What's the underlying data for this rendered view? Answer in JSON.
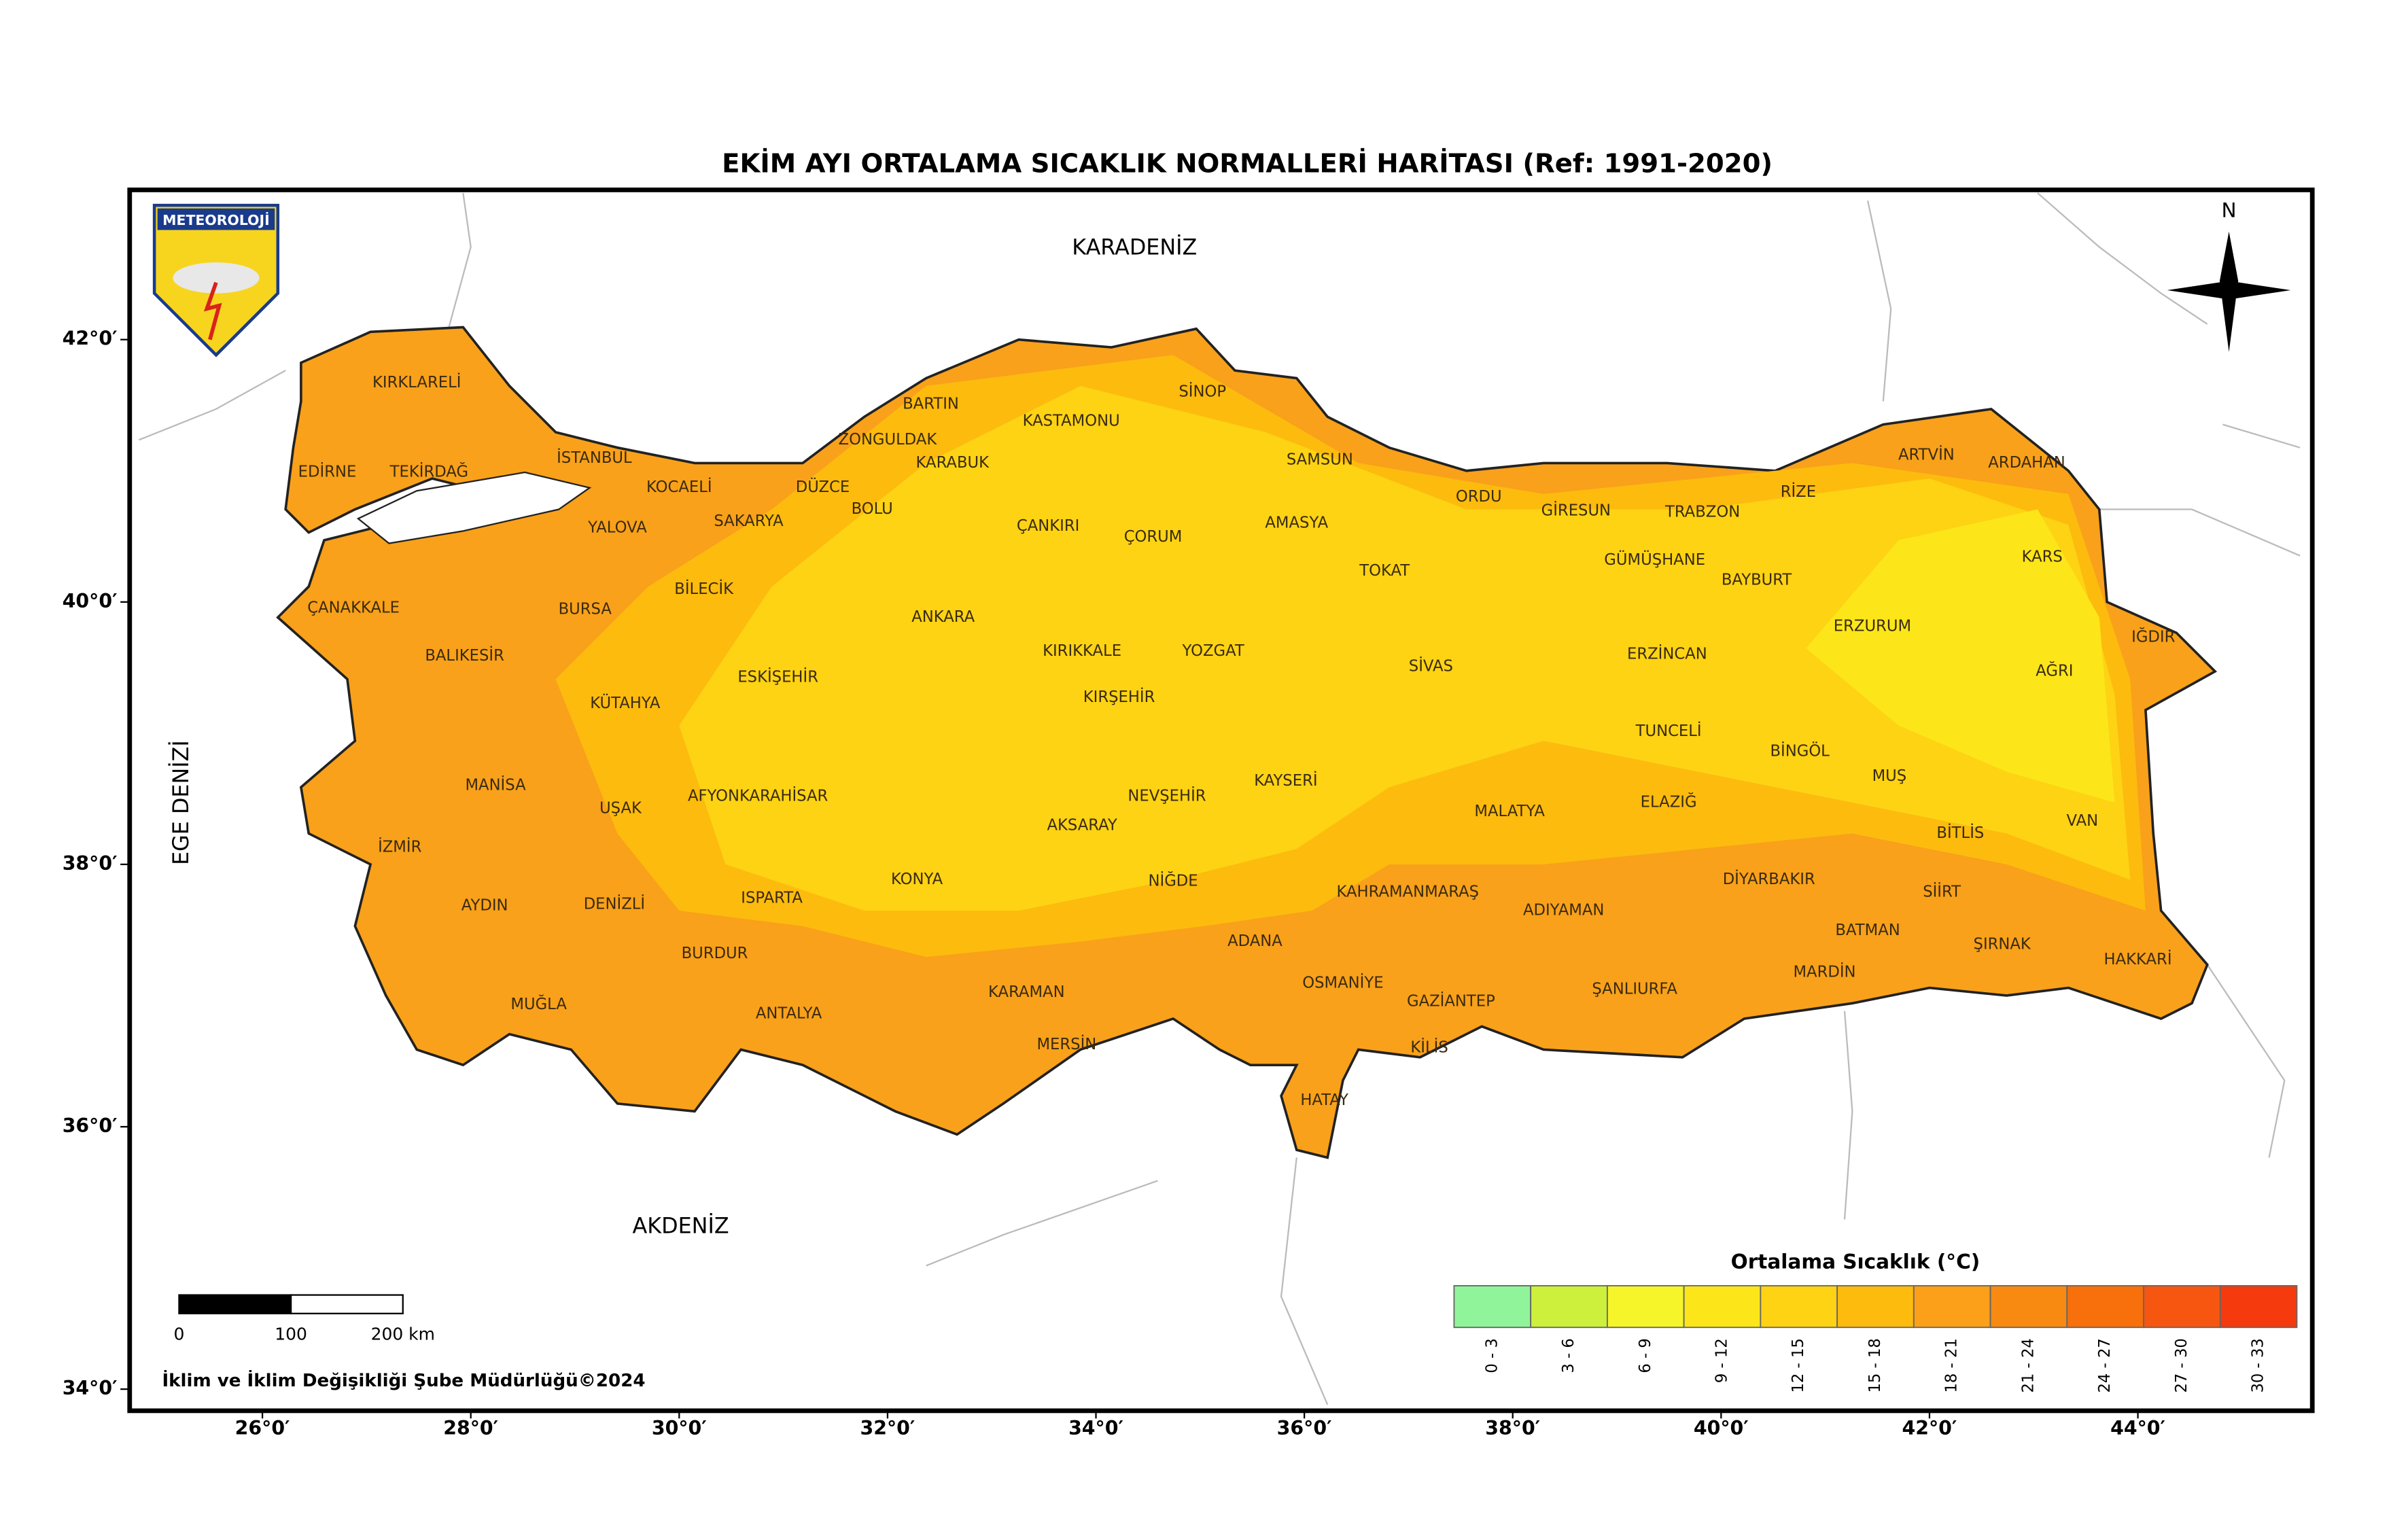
{
  "title": "EKİM AYI ORTALAMA SICAKLIK NORMALLERİ HARİTASI (Ref: 1991-2020)",
  "seas": [
    "KARADENİZ",
    "AKDENİZ",
    "EGE DENİZİ"
  ],
  "logo": "METEOROLOJİ",
  "north": "N",
  "footer": "İklim ve İklim Değişikliği Şube Müdürlüğü©2024",
  "provinces": [
    "KIRKLARELİ",
    "EDİRNE",
    "TEKİRDAĞ",
    "İSTANBUL",
    "KOCAELİ",
    "YALOVA",
    "SAKARYA",
    "DÜZCE",
    "ZONGULDAK",
    "BARTIN",
    "KARABUK",
    "BOLU",
    "KASTAMONU",
    "SİNOP",
    "SAMSUN",
    "ORDU",
    "GİRESUN",
    "TRABZON",
    "RİZE",
    "ARTVİN",
    "ARDAHAN",
    "KARS",
    "IĞDIR",
    "AĞRI",
    "ERZURUM",
    "BAYBURT",
    "GÜMÜŞHANE",
    "ERZİNCAN",
    "TOKAT",
    "AMASYA",
    "ÇORUM",
    "ÇANKIRI",
    "ANKARA",
    "KIRIKKALE",
    "YOZGAT",
    "SİVAS",
    "KIRŞEHİR",
    "NEVŞEHİR",
    "KAYSERİ",
    "AKSARAY",
    "NİĞDE",
    "KONYA",
    "KARAMAN",
    "MERSİN",
    "ADANA",
    "OSMANİYE",
    "HATAY",
    "KİLİS",
    "GAZİANTEP",
    "KAHRAMANMARAŞ",
    "MALATYA",
    "ADIYAMAN",
    "ŞANLIURFA",
    "ELAZIĞ",
    "TUNCELİ",
    "BİNGÖL",
    "MUŞ",
    "BİTLİS",
    "VAN",
    "DİYARBAKIR",
    "BATMAN",
    "SİİRT",
    "MARDİN",
    "ŞIRNAK",
    "HAKKARİ",
    "BİLECİK",
    "BURSA",
    "ÇANAKKALE",
    "BALIKESİR",
    "KÜTAHYA",
    "ESKİŞEHİR",
    "AFYONKARAHİSAR",
    "UŞAK",
    "MANİSA",
    "İZMİR",
    "AYDIN",
    "DENİZLİ",
    "ISPARTA",
    "BURDUR",
    "MUĞLA",
    "ANTALYA"
  ],
  "lat_ticks": [
    {
      "value": 42,
      "label": "42°0′"
    },
    {
      "value": 40,
      "label": "40°0′"
    },
    {
      "value": 38,
      "label": "38°0′"
    },
    {
      "value": 36,
      "label": "36°0′"
    },
    {
      "value": 34,
      "label": "34°0′"
    }
  ],
  "lon_ticks": [
    {
      "value": 26,
      "label": "26°0′"
    },
    {
      "value": 28,
      "label": "28°0′"
    },
    {
      "value": 30,
      "label": "30°0′"
    },
    {
      "value": 32,
      "label": "32°0′"
    },
    {
      "value": 34,
      "label": "34°0′"
    },
    {
      "value": 36,
      "label": "36°0′"
    },
    {
      "value": 38,
      "label": "38°0′"
    },
    {
      "value": 40,
      "label": "40°0′"
    },
    {
      "value": 42,
      "label": "42°0′"
    },
    {
      "value": 44,
      "label": "44°0′"
    }
  ],
  "scale_bar": [
    0,
    100,
    {
      "value": 200,
      "label": "200 km"
    }
  ],
  "legend": {
    "title": "Ortalama Sıcaklık (°C)",
    "items": [
      {
        "label": "0 - 3",
        "color": "#90f59a"
      },
      {
        "label": "3 - 6",
        "color": "#ccf03c"
      },
      {
        "label": "6 - 9",
        "color": "#f6f52a"
      },
      {
        "label": "9 - 12",
        "color": "#fce619"
      },
      {
        "label": "12 - 15",
        "color": "#fdd313"
      },
      {
        "label": "15 - 18",
        "color": "#fdbb0e"
      },
      {
        "label": "18 - 21",
        "color": "#fba018"
      },
      {
        "label": "21 - 24",
        "color": "#f88a12"
      },
      {
        "label": "24 - 27",
        "color": "#f7700c"
      },
      {
        "label": "27 - 30",
        "color": "#f65610"
      },
      {
        "label": "30 - 33",
        "color": "#f53a0e"
      }
    ]
  }
}
